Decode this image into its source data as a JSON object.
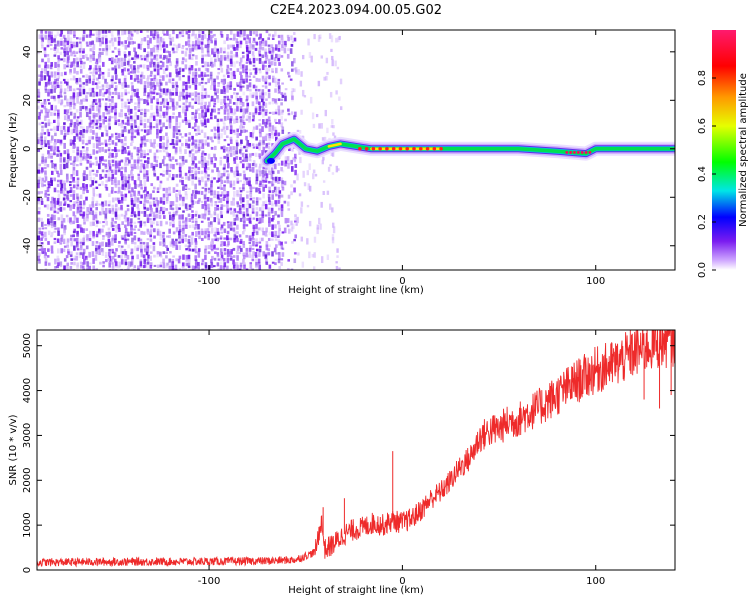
{
  "title": "C2E4.2023.094.00.05.G02",
  "chart_data": [
    {
      "type": "heatmap",
      "xlabel": "Height of straight line (km)",
      "ylabel": "Frequency (Hz)",
      "xlim": [
        -189,
        141
      ],
      "ylim": [
        -50,
        49
      ],
      "xticks": [
        -100,
        0,
        100
      ],
      "yticks": [
        -40,
        -20,
        0,
        20,
        40
      ],
      "noise_region_km": [
        -189,
        -58
      ],
      "signal_track": [
        {
          "x": -70,
          "y": -5
        },
        {
          "x": -66,
          "y": -2
        },
        {
          "x": -62,
          "y": 2
        },
        {
          "x": -56,
          "y": 4
        },
        {
          "x": -50,
          "y": 0
        },
        {
          "x": -44,
          "y": -1
        },
        {
          "x": -38,
          "y": 1
        },
        {
          "x": -32,
          "y": 2
        },
        {
          "x": -24,
          "y": 1
        },
        {
          "x": -16,
          "y": 0
        },
        {
          "x": 0,
          "y": 0
        },
        {
          "x": 20,
          "y": 0
        },
        {
          "x": 40,
          "y": 0
        },
        {
          "x": 60,
          "y": 0
        },
        {
          "x": 80,
          "y": -1
        },
        {
          "x": 95,
          "y": -2
        },
        {
          "x": 100,
          "y": 0
        },
        {
          "x": 141,
          "y": 0
        }
      ],
      "colorbar": {
        "label": "Normalized spectral amplitude",
        "range": [
          0.0,
          1.0
        ],
        "ticks": [
          0.0,
          0.2,
          0.4,
          0.6,
          0.8
        ],
        "colors": [
          "#ffffff",
          "#cfa8ff",
          "#7a1cf0",
          "#0000ff",
          "#00e6e6",
          "#00ff00",
          "#e6ff00",
          "#ff9900",
          "#ff0000",
          "#ff1a6e"
        ]
      },
      "colors": {
        "noise": "#7a1cf0",
        "track_core": "#ff2020"
      }
    },
    {
      "type": "line",
      "xlabel": "Height of straight line (km)",
      "ylabel": "SNR (10 * v/v)",
      "xlim": [
        -189,
        141
      ],
      "ylim": [
        0,
        5350
      ],
      "xticks": [
        -100,
        0,
        100
      ],
      "yticks": [
        0,
        1000,
        2000,
        3000,
        4000,
        5000
      ],
      "color": "#ee2a2a",
      "x": [
        -189,
        -160,
        -130,
        -100,
        -70,
        -55,
        -45,
        -42,
        -40,
        -35,
        -30,
        -25,
        -20,
        -15,
        -10,
        -5,
        0,
        5,
        10,
        15,
        20,
        25,
        30,
        35,
        40,
        45,
        50,
        55,
        60,
        65,
        70,
        80,
        90,
        100,
        110,
        120,
        130,
        141
      ],
      "y": [
        170,
        180,
        185,
        190,
        200,
        230,
        400,
        1100,
        450,
        600,
        800,
        900,
        950,
        1050,
        1000,
        1100,
        1050,
        1150,
        1350,
        1600,
        1750,
        2000,
        2300,
        2500,
        2950,
        3100,
        3150,
        3300,
        3350,
        3500,
        3600,
        3900,
        4200,
        4450,
        4600,
        4850,
        5050,
        5150
      ],
      "spikes": [
        {
          "x": -41,
          "y": 1400
        },
        {
          "x": -30,
          "y": 1600
        },
        {
          "x": -5,
          "y": 2650
        },
        {
          "x": 125,
          "y": 3800
        },
        {
          "x": 133,
          "y": 3600
        },
        {
          "x": 139,
          "y": 3900
        }
      ]
    }
  ]
}
